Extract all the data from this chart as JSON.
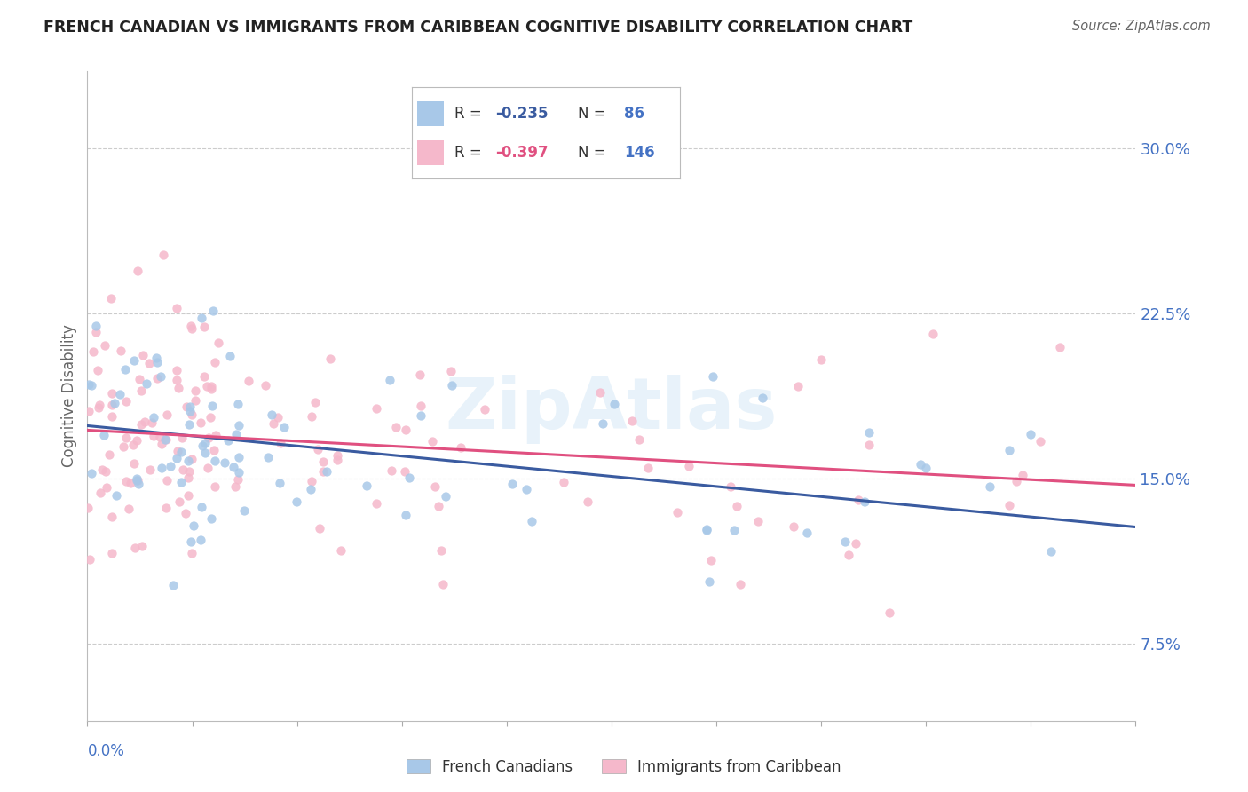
{
  "title": "FRENCH CANADIAN VS IMMIGRANTS FROM CARIBBEAN COGNITIVE DISABILITY CORRELATION CHART",
  "source": "Source: ZipAtlas.com",
  "ylabel": "Cognitive Disability",
  "yticks": [
    0.075,
    0.15,
    0.225,
    0.3
  ],
  "ytick_labels": [
    "7.5%",
    "15.0%",
    "22.5%",
    "30.0%"
  ],
  "xmin": 0.0,
  "xmax": 0.8,
  "ymin": 0.04,
  "ymax": 0.335,
  "series1": {
    "name": "French Canadians",
    "color": "#a8c8e8",
    "R": -0.235,
    "N": 86,
    "line_color": "#3a5ba0"
  },
  "series2": {
    "name": "Immigrants from Caribbean",
    "color": "#f5b8cb",
    "R": -0.397,
    "N": 146,
    "line_color": "#e05080"
  },
  "background_color": "#ffffff",
  "grid_color": "#cccccc",
  "title_color": "#222222",
  "axis_label_color": "#4472c4",
  "watermark": "ZipAtlas",
  "trend1_x0": 0.0,
  "trend1_y0": 0.174,
  "trend1_x1": 0.8,
  "trend1_y1": 0.128,
  "trend2_x0": 0.0,
  "trend2_y0": 0.172,
  "trend2_x1": 0.8,
  "trend2_y1": 0.147
}
